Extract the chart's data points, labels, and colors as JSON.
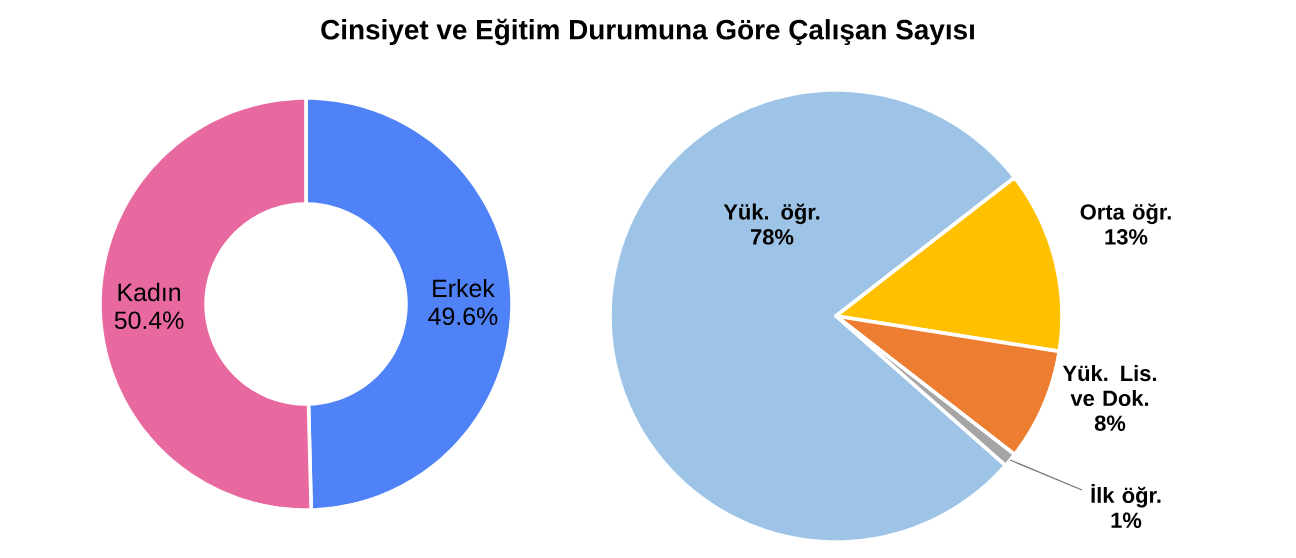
{
  "chart_data": [
    {
      "type": "donut",
      "title": "Cinsiyet ve Eğitim Durumuna Göre Çalışan Sayısı",
      "categories": [
        "Erkek",
        "Kadın"
      ],
      "values": [
        49.6,
        50.4
      ],
      "value_labels": [
        "49.6%",
        "50.4%"
      ],
      "colors": [
        "#4f81f7",
        "#e8699f"
      ]
    },
    {
      "type": "pie",
      "categories": [
        "Yük. öğr.",
        "Orta öğr.",
        "Yük. Lis. ve Dok.",
        "İlk öğr."
      ],
      "values": [
        78,
        13,
        8,
        1
      ],
      "value_labels": [
        "78%",
        "13%",
        "8%",
        "1%"
      ],
      "colors": [
        "#9dc3e6",
        "#ffc000",
        "#ed7d31",
        "#a5a5a5"
      ]
    }
  ]
}
